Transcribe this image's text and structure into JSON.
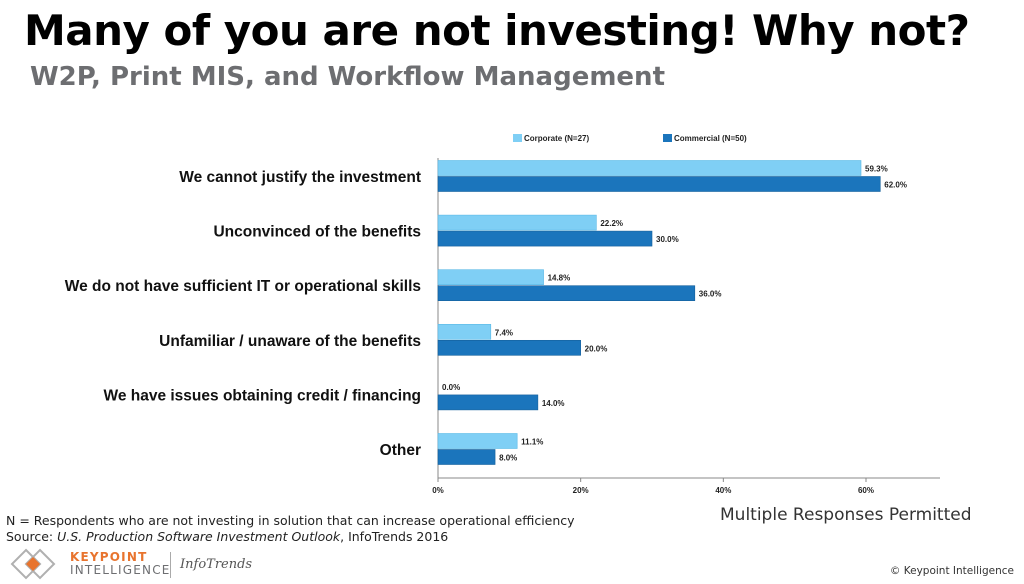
{
  "header": {
    "title": "Many of you are not investing! Why not?",
    "subtitle": "W2P, Print MIS, and Workflow Management"
  },
  "chart_data": {
    "type": "bar",
    "orientation": "horizontal",
    "categories": [
      "We cannot justify the investment",
      "Unconvinced of the benefits",
      "We do not have sufficient IT or operational skills",
      "Unfamiliar / unaware of the benefits",
      "We have issues obtaining credit / financing",
      "Other"
    ],
    "series": [
      {
        "name": "Corporate (N=27)",
        "color": "#7fcff5",
        "values": [
          59.3,
          22.2,
          14.8,
          7.4,
          0.0,
          11.1
        ],
        "labels": [
          "59.3%",
          "22.2%",
          "14.8%",
          "7.4%",
          "0.0%",
          "11.1%"
        ]
      },
      {
        "name": "Commercial (N=50)",
        "color": "#1b75bc",
        "values": [
          62.0,
          30.0,
          36.0,
          20.0,
          14.0,
          8.0
        ],
        "labels": [
          "62.0%",
          "30.0%",
          "36.0%",
          "20.0%",
          "14.0%",
          "8.0%"
        ]
      }
    ],
    "xlim": [
      0,
      70
    ],
    "xticks": [
      0,
      20,
      40,
      60
    ],
    "xtick_labels": [
      "0%",
      "20%",
      "40%",
      "60%"
    ],
    "grid": false,
    "legend_position": "top"
  },
  "footer": {
    "note_line1": "N = Respondents who are not investing in solution that can increase operational efficiency",
    "source_prefix": "Source: ",
    "source_title": "U.S. Production Software Investment Outlook",
    "source_suffix": ", InfoTrends 2016",
    "multiple_responses": "Multiple Responses Permitted",
    "logo_line1": "KEYPOINT",
    "logo_line2": "INTELLIGENCE",
    "infotrends": "InfoTrends",
    "copyright": "© Keypoint Intelligence"
  }
}
